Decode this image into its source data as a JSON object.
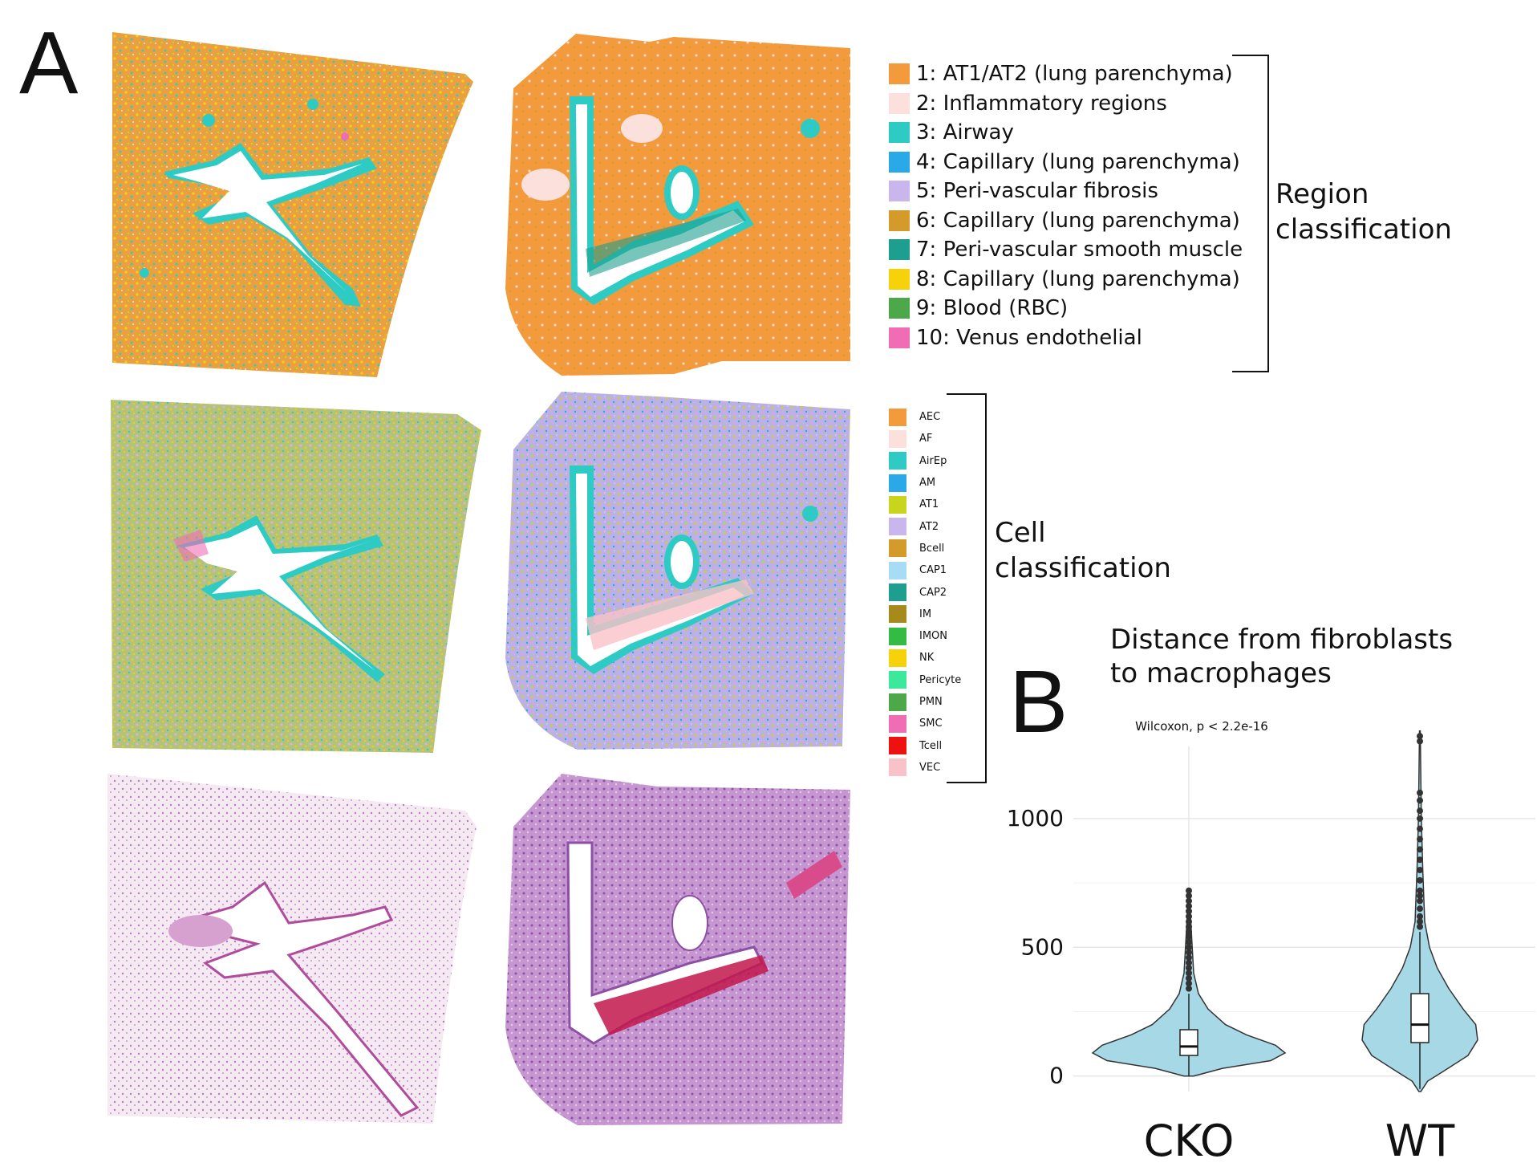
{
  "panel_a": {
    "letter": "A",
    "region_legend": {
      "title_line1": "Region",
      "title_line2": "classification",
      "items": [
        {
          "label": "1: AT1/AT2 (lung parenchyma)",
          "color": "#F39A3C"
        },
        {
          "label": "2: Inflammatory regions",
          "color": "#FCE0DC"
        },
        {
          "label": "3: Airway",
          "color": "#2ECBC4"
        },
        {
          "label": "4: Capillary (lung parenchyma)",
          "color": "#2AA8E8"
        },
        {
          "label": "5: Peri-vascular fibrosis",
          "color": "#C9B6EC"
        },
        {
          "label": "6: Capillary (lung parenchyma)",
          "color": "#D59B2A"
        },
        {
          "label": "7: Peri-vascular smooth muscle",
          "color": "#1E9E8E"
        },
        {
          "label": "8: Capillary (lung parenchyma)",
          "color": "#F5D20A"
        },
        {
          "label": "9: Blood (RBC)",
          "color": "#4DA84A"
        },
        {
          "label": "10: Venus endothelial",
          "color": "#F06CB4"
        }
      ]
    },
    "cell_legend": {
      "title_line1": "Cell",
      "title_line2": "classification",
      "items": [
        {
          "label": "AEC",
          "color": "#F39A3C"
        },
        {
          "label": "AF",
          "color": "#FCE0DC"
        },
        {
          "label": "AirEp",
          "color": "#2ECBC4"
        },
        {
          "label": "AM",
          "color": "#2AA8E8"
        },
        {
          "label": "AT1",
          "color": "#C9D51C"
        },
        {
          "label": "AT2",
          "color": "#C9B6EC"
        },
        {
          "label": "Bcell",
          "color": "#D59B2A"
        },
        {
          "label": "CAP1",
          "color": "#A6DDF5"
        },
        {
          "label": "CAP2",
          "color": "#1E9E8E"
        },
        {
          "label": "IM",
          "color": "#A68A1C"
        },
        {
          "label": "IMON",
          "color": "#33BB44"
        },
        {
          "label": "NK",
          "color": "#F5D20A"
        },
        {
          "label": "Pericyte",
          "color": "#3CE89A"
        },
        {
          "label": "PMN",
          "color": "#4DA84A"
        },
        {
          "label": "SMC",
          "color": "#F06CB4"
        },
        {
          "label": "Tcell",
          "color": "#EE1111"
        },
        {
          "label": "VEC",
          "color": "#F9C2C8"
        }
      ]
    }
  },
  "panel_b": {
    "letter": "B",
    "chart_data": {
      "type": "violin",
      "title": "Distance from fibroblasts to macrophages",
      "title_line1": "Distance from fibroblasts",
      "title_line2": "to macrophages",
      "annotation": "Wilcoxon, p < 2.2e-16",
      "categories": [
        "CKO",
        "WT"
      ],
      "y_ticks": [
        0,
        500,
        1000
      ],
      "y_tick_labels": [
        "0",
        "500",
        "1000"
      ],
      "ylim": [
        -60,
        1280
      ],
      "fill_color": "#A6D8E6",
      "series": [
        {
          "name": "CKO",
          "box": {
            "q1": 80,
            "median": 115,
            "q3": 180,
            "whisker_low": 0,
            "whisker_high": 320
          },
          "range": [
            0,
            720
          ],
          "outliers": [
            340,
            360,
            380,
            400,
            420,
            440,
            460,
            480,
            500,
            520,
            540,
            560,
            580,
            600,
            620,
            640,
            660,
            680,
            700,
            720
          ],
          "density": [
            [
              0,
              0.05
            ],
            [
              30,
              0.35
            ],
            [
              60,
              0.85
            ],
            [
              90,
              1.0
            ],
            [
              120,
              0.9
            ],
            [
              160,
              0.6
            ],
            [
              200,
              0.38
            ],
            [
              260,
              0.2
            ],
            [
              320,
              0.1
            ],
            [
              400,
              0.05
            ],
            [
              500,
              0.035
            ],
            [
              600,
              0.02
            ],
            [
              720,
              0.005
            ]
          ]
        },
        {
          "name": "WT",
          "box": {
            "q1": 130,
            "median": 200,
            "q3": 320,
            "whisker_low": -50,
            "whisker_high": 560
          },
          "range": [
            -60,
            1340
          ],
          "outliers": [
            580,
            600,
            620,
            650,
            680,
            700,
            720,
            760,
            800,
            840,
            880,
            920,
            960,
            1000,
            1030,
            1070,
            1100,
            1300,
            1320
          ],
          "density": [
            [
              -60,
              0.01
            ],
            [
              -20,
              0.08
            ],
            [
              20,
              0.25
            ],
            [
              80,
              0.5
            ],
            [
              140,
              0.6
            ],
            [
              200,
              0.58
            ],
            [
              260,
              0.45
            ],
            [
              340,
              0.3
            ],
            [
              420,
              0.18
            ],
            [
              500,
              0.1
            ],
            [
              600,
              0.05
            ],
            [
              800,
              0.03
            ],
            [
              1000,
              0.015
            ],
            [
              1340,
              0.004
            ]
          ]
        }
      ]
    }
  }
}
